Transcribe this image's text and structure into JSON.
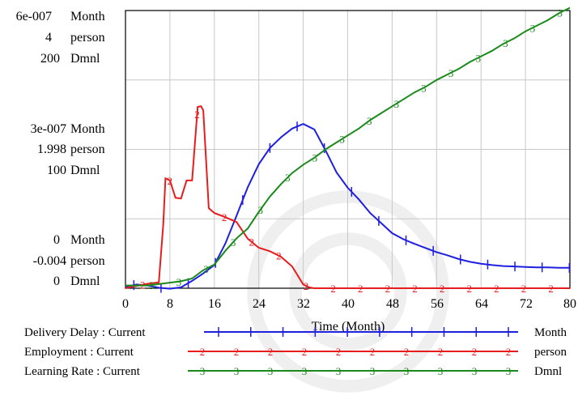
{
  "chart_data": {
    "type": "line",
    "xlabel": "Time (Month)",
    "x_ticks": [
      "0",
      "8",
      "16",
      "24",
      "32",
      "40",
      "48",
      "56",
      "64",
      "72",
      "80"
    ],
    "xlim": [
      0,
      80
    ],
    "y_axes": [
      {
        "unit": "Month",
        "ticks": [
          "0",
          "3e-007",
          "6e-007"
        ],
        "ylim": [
          0,
          6e-07
        ]
      },
      {
        "unit": "person",
        "ticks": [
          "-0.004",
          "1.998",
          "4"
        ],
        "ylim": [
          -0.004,
          4
        ]
      },
      {
        "unit": "Dmnl",
        "ticks": [
          "0",
          "100",
          "200"
        ],
        "ylim": [
          0,
          200
        ]
      }
    ],
    "grid": true,
    "legend_position": "bottom",
    "series": [
      {
        "name": "Delivery Delay : Current",
        "unit": "Month",
        "color": "#1f1fe0",
        "marker": "|",
        "x": [
          0,
          2,
          4,
          6,
          8,
          10,
          12,
          14,
          16,
          18,
          20,
          22,
          24,
          26,
          28,
          30,
          32,
          34,
          36,
          38,
          40,
          42,
          44,
          46,
          48,
          50,
          52,
          54,
          56,
          58,
          60,
          62,
          64,
          66,
          68,
          70,
          72,
          74,
          76,
          78,
          80
        ],
        "y": [
          3e-09,
          8e-09,
          6e-09,
          1e-09,
          -1e-09,
          2e-09,
          1.6e-08,
          3.2e-08,
          5e-08,
          9.7e-08,
          1.57e-07,
          2.18e-07,
          2.68e-07,
          3.03e-07,
          3.26e-07,
          3.45e-07,
          3.55e-07,
          3.43e-07,
          2.98e-07,
          2.5e-07,
          2.17e-07,
          1.92e-07,
          1.63e-07,
          1.41e-07,
          1.19e-07,
          1.06e-07,
          9.6e-08,
          8.7e-08,
          7.8e-08,
          7.1e-08,
          6.3e-08,
          5.7e-08,
          5.3e-08,
          5e-08,
          4.8e-08,
          4.7e-08,
          4.6e-08,
          4.5e-08,
          4.5e-08,
          4.4e-08,
          4.4e-08
        ]
      },
      {
        "name": "Employment : Current",
        "unit": "person",
        "color": "#e81c1c",
        "marker": "2",
        "x": [
          0,
          2,
          4,
          6,
          6.8,
          7.2,
          8,
          9,
          10,
          11,
          12,
          13,
          13.6,
          14,
          15,
          16,
          18,
          20,
          22,
          24,
          26,
          28,
          30,
          32,
          33,
          34,
          36,
          40,
          50,
          60,
          70,
          80
        ],
        "y": [
          -0.004,
          0.03,
          0.06,
          0.08,
          0.92,
          1.58,
          1.55,
          1.3,
          1.29,
          1.55,
          1.55,
          2.61,
          2.62,
          2.56,
          1.15,
          1.08,
          1.02,
          0.95,
          0.71,
          0.58,
          0.53,
          0.45,
          0.31,
          0.05,
          0.01,
          -0.004,
          -0.004,
          -0.004,
          -0.004,
          -0.004,
          -0.004,
          -0.004
        ]
      },
      {
        "name": "Learning Rate : Current",
        "unit": "Dmnl",
        "color": "#1a8a1a",
        "marker": "3",
        "x": [
          0,
          4,
          8,
          10,
          12,
          14,
          16,
          18,
          20,
          22,
          24,
          26,
          28,
          30,
          32,
          34,
          36,
          38,
          40,
          42,
          44,
          46,
          48,
          50,
          52,
          54,
          56,
          58,
          60,
          62,
          64,
          66,
          68,
          70,
          72,
          74,
          76,
          78,
          80
        ],
        "y": [
          2,
          2,
          4,
          5,
          7,
          13,
          17,
          27,
          36,
          43,
          55,
          66,
          75,
          83,
          89,
          94,
          100,
          105,
          110,
          115,
          121,
          126,
          131,
          136,
          141,
          145,
          150,
          154,
          158,
          163,
          167,
          171,
          176,
          180,
          185,
          189,
          193,
          198,
          202
        ]
      }
    ]
  },
  "legend": [
    {
      "label": "Delivery Delay : Current",
      "unit": "Month"
    },
    {
      "label": "Employment : Current",
      "unit": "person"
    },
    {
      "label": "Learning Rate : Current",
      "unit": "Dmnl"
    }
  ]
}
